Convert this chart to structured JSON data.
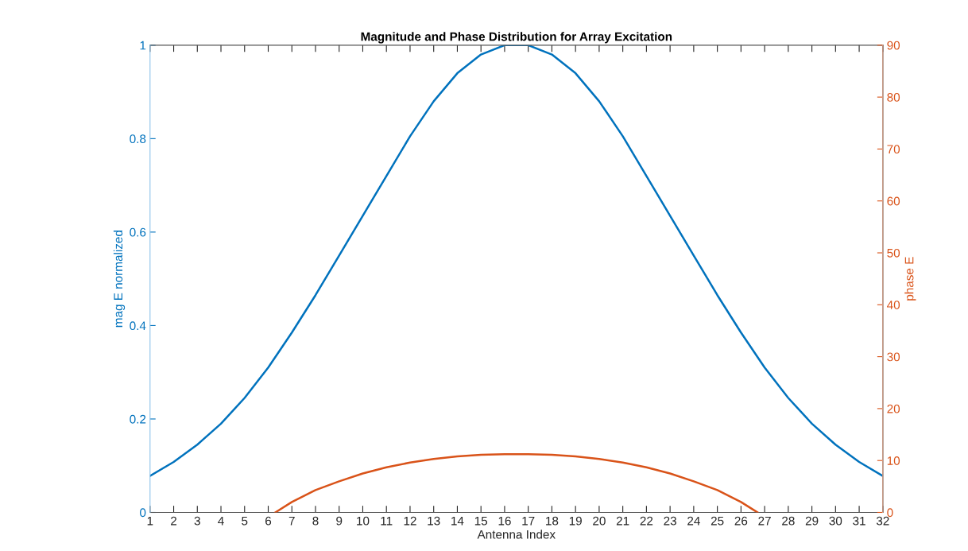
{
  "chart_data": {
    "type": "line",
    "title": "Magnitude and Phase Distribution for Array Excitation",
    "xlabel": "Antenna Index",
    "ylabel": "mag E normalized",
    "y2label": "phase E",
    "xlim": [
      1,
      32
    ],
    "xticks": [
      1,
      2,
      3,
      4,
      5,
      6,
      7,
      8,
      9,
      10,
      11,
      12,
      13,
      14,
      15,
      16,
      17,
      18,
      19,
      20,
      21,
      22,
      23,
      24,
      25,
      26,
      27,
      28,
      29,
      30,
      31,
      32
    ],
    "ylim": [
      0,
      1
    ],
    "yticks": [
      0,
      0.2,
      0.4,
      0.6,
      0.8,
      1
    ],
    "y2lim": [
      0,
      90
    ],
    "y2ticks": [
      0,
      10,
      20,
      30,
      40,
      50,
      60,
      70,
      80,
      90
    ],
    "grid": false,
    "legend": false,
    "series": [
      {
        "color": "#0072bd",
        "x": [
          1,
          2,
          3,
          4,
          5,
          6,
          7,
          8,
          9,
          10,
          11,
          12,
          13,
          14,
          15,
          16,
          17,
          18,
          19,
          20,
          21,
          22,
          23,
          24,
          25,
          26,
          27,
          28,
          29,
          30,
          31,
          32
        ],
        "values": [
          0.078,
          0.108,
          0.145,
          0.19,
          0.245,
          0.31,
          0.385,
          0.465,
          0.55,
          0.635,
          0.72,
          0.805,
          0.88,
          0.94,
          0.98,
          1.0,
          1.0,
          0.98,
          0.94,
          0.88,
          0.805,
          0.72,
          0.635,
          0.55,
          0.465,
          0.385,
          0.31,
          0.245,
          0.19,
          0.145,
          0.108,
          0.078
        ]
      },
      {
        "color": "#d95319",
        "axis": "y2",
        "x": [
          6.3,
          7,
          8,
          9,
          10,
          11,
          12,
          13,
          14,
          15,
          16,
          17,
          18,
          19,
          20,
          21,
          22,
          23,
          24,
          25,
          26,
          26.7
        ],
        "values": [
          0,
          2.0,
          4.3,
          6.0,
          7.5,
          8.7,
          9.6,
          10.3,
          10.8,
          11.1,
          11.2,
          11.2,
          11.1,
          10.8,
          10.3,
          9.6,
          8.7,
          7.5,
          6.0,
          4.3,
          2.0,
          0
        ]
      }
    ]
  }
}
